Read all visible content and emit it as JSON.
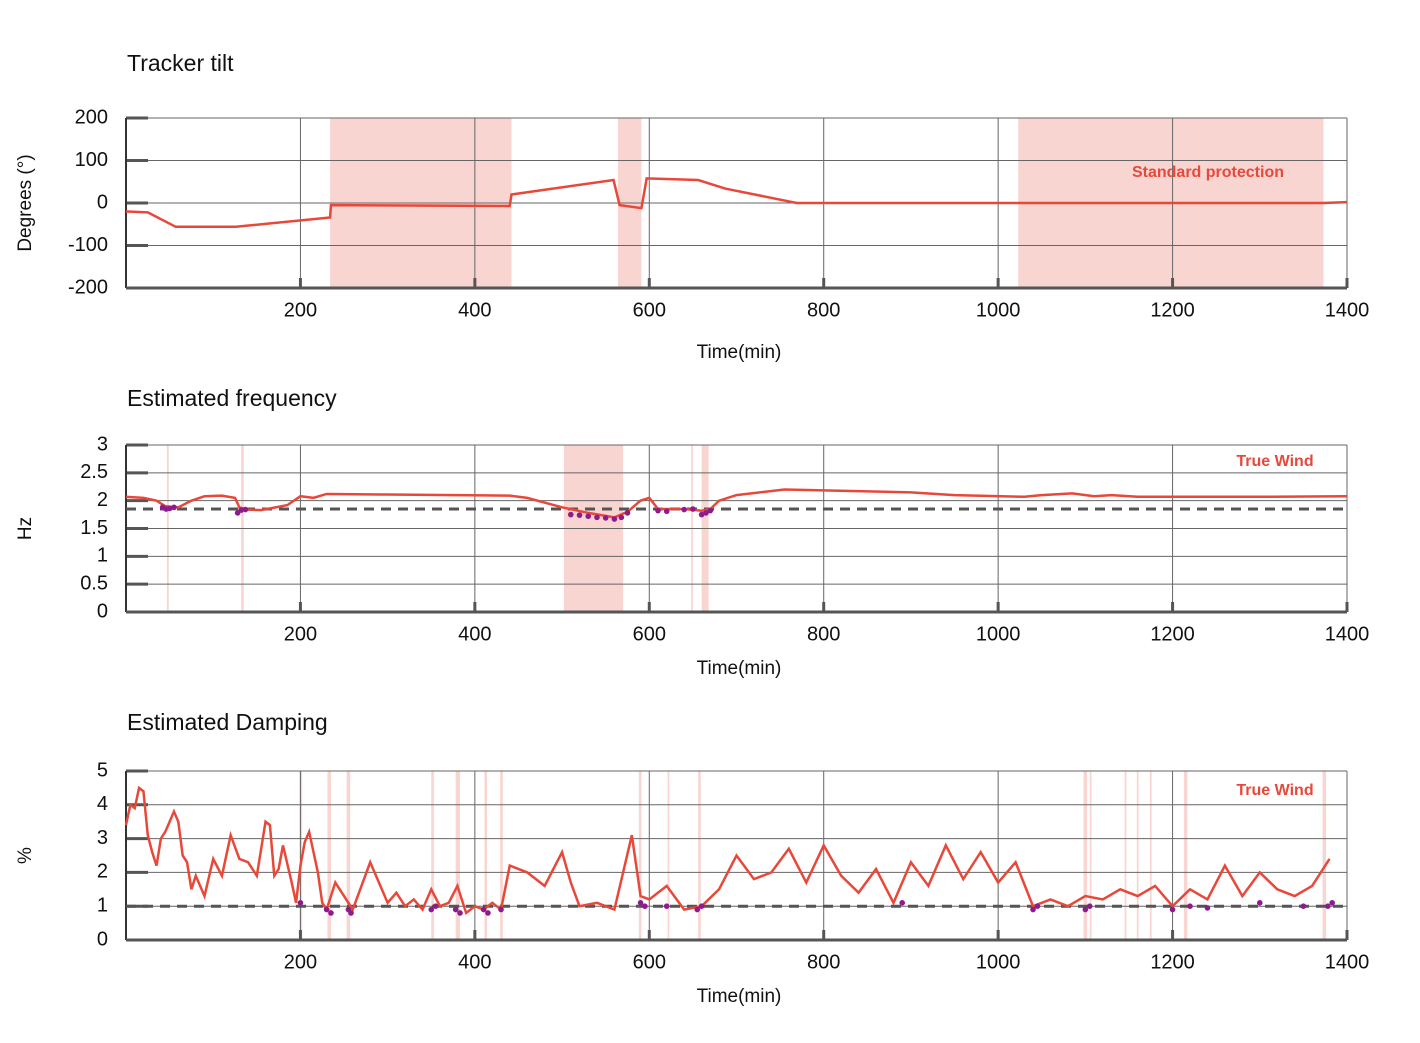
{
  "chart_data": [
    {
      "type": "line",
      "title": "Tracker tilt",
      "xlabel": "Time(min)",
      "ylabel": "Degrees (°)",
      "annotation": "Standard protection",
      "xlim": [
        0,
        1400
      ],
      "xticks": [
        200,
        400,
        600,
        800,
        1000,
        1200,
        1400
      ],
      "ylim": [
        -200,
        200
      ],
      "yticks": [
        -200,
        -100,
        0,
        100,
        200
      ],
      "grid": true,
      "band_color": "#f9d5d1",
      "bands": [
        [
          234,
          442
        ],
        [
          564,
          591
        ],
        [
          1023,
          1373
        ]
      ],
      "series": [
        {
          "color": "#e8483a",
          "x": [
            0,
            25,
            57,
            126,
            234,
            235,
            440,
            442,
            559,
            566,
            591,
            597,
            656,
            687,
            769,
            1373,
            1400
          ],
          "values": [
            -20,
            -22,
            -56,
            -56,
            -34,
            -5,
            -7,
            20,
            54,
            -5,
            -12,
            58,
            54,
            34,
            0,
            0,
            2
          ]
        }
      ]
    },
    {
      "type": "line",
      "title": "Estimated frequency",
      "xlabel": "Time(min)",
      "ylabel": "Hz",
      "annotation": "True Wind",
      "xlim": [
        0,
        1400
      ],
      "xticks": [
        200,
        400,
        600,
        800,
        1000,
        1200,
        1400
      ],
      "ylim": [
        0,
        3
      ],
      "yticks": [
        0,
        0.5,
        1,
        1.5,
        2,
        2.5,
        3
      ],
      "grid": true,
      "threshold": 1.85,
      "band_color": "#f9d5d1",
      "bands": [
        [
          47,
          49
        ],
        [
          132,
          135
        ],
        [
          502,
          570
        ],
        [
          648,
          650
        ],
        [
          660,
          668
        ]
      ],
      "series": [
        {
          "color": "#e8483a",
          "x": [
            0,
            20,
            35,
            45,
            60,
            75,
            90,
            110,
            125,
            130,
            140,
            155,
            185,
            200,
            215,
            230,
            300,
            440,
            460,
            500,
            530,
            560,
            575,
            590,
            600,
            610,
            640,
            660,
            670,
            680,
            700,
            755,
            900,
            950,
            1030,
            1050,
            1085,
            1110,
            1130,
            1160,
            1300,
            1400
          ],
          "values": [
            2.07,
            2.05,
            2.0,
            1.9,
            1.88,
            2.0,
            2.08,
            2.09,
            2.05,
            1.88,
            1.84,
            1.83,
            1.92,
            2.08,
            2.05,
            2.12,
            2.11,
            2.09,
            2.05,
            1.88,
            1.78,
            1.7,
            1.8,
            2.0,
            2.05,
            1.85,
            1.85,
            1.82,
            1.85,
            2.0,
            2.1,
            2.2,
            2.15,
            2.1,
            2.07,
            2.1,
            2.13,
            2.08,
            2.1,
            2.07,
            2.07,
            2.08
          ]
        }
      ],
      "points": {
        "color": "#8e1b8e",
        "x": [
          42,
          46,
          50,
          55,
          128,
          132,
          137,
          510,
          520,
          530,
          540,
          550,
          560,
          568,
          575,
          610,
          620,
          640,
          650,
          660,
          665,
          670
        ],
        "values": [
          1.88,
          1.85,
          1.86,
          1.88,
          1.78,
          1.83,
          1.84,
          1.75,
          1.74,
          1.72,
          1.7,
          1.69,
          1.67,
          1.7,
          1.78,
          1.82,
          1.81,
          1.84,
          1.85,
          1.75,
          1.78,
          1.82
        ]
      }
    },
    {
      "type": "line",
      "title": "Estimated Damping",
      "xlabel": "Time(min)",
      "ylabel": "%",
      "annotation": "True Wind",
      "xlim": [
        0,
        1400
      ],
      "xticks": [
        200,
        400,
        600,
        800,
        1000,
        1200,
        1400
      ],
      "ylim": [
        0,
        5
      ],
      "yticks": [
        0,
        1,
        2,
        3,
        4,
        5
      ],
      "grid": true,
      "threshold": 1,
      "band_color": "#f9d5d1",
      "bands": [
        [
          199,
          202
        ],
        [
          231,
          235
        ],
        [
          253,
          257
        ],
        [
          350,
          353
        ],
        [
          378,
          383
        ],
        [
          411,
          414
        ],
        [
          429,
          432
        ],
        [
          588,
          591
        ],
        [
          621,
          623
        ],
        [
          656,
          659
        ],
        [
          1098,
          1102
        ],
        [
          1105,
          1107
        ],
        [
          1145,
          1147
        ],
        [
          1159,
          1161
        ],
        [
          1174,
          1176
        ],
        [
          1213,
          1217
        ],
        [
          1372,
          1376
        ]
      ],
      "series": [
        {
          "color": "#e8483a",
          "x": [
            0,
            5,
            10,
            15,
            20,
            25,
            30,
            35,
            40,
            45,
            50,
            55,
            60,
            65,
            70,
            75,
            80,
            90,
            100,
            110,
            120,
            130,
            140,
            150,
            160,
            165,
            170,
            175,
            180,
            190,
            195,
            200,
            205,
            210,
            215,
            220,
            225,
            230,
            240,
            250,
            260,
            270,
            280,
            290,
            300,
            310,
            320,
            330,
            340,
            350,
            360,
            370,
            380,
            390,
            400,
            410,
            420,
            430,
            440,
            460,
            480,
            500,
            510,
            520,
            540,
            560,
            580,
            590,
            600,
            620,
            640,
            660,
            680,
            700,
            720,
            740,
            760,
            780,
            800,
            820,
            840,
            860,
            880,
            900,
            920,
            940,
            960,
            980,
            1000,
            1020,
            1040,
            1060,
            1080,
            1100,
            1120,
            1140,
            1160,
            1180,
            1200,
            1220,
            1240,
            1260,
            1280,
            1300,
            1320,
            1340,
            1360,
            1380
          ],
          "values": [
            3.4,
            4.0,
            3.9,
            4.5,
            4.4,
            3.1,
            2.6,
            2.2,
            3.0,
            3.2,
            3.5,
            3.8,
            3.5,
            2.5,
            2.3,
            1.5,
            1.9,
            1.3,
            2.4,
            1.9,
            3.1,
            2.4,
            2.3,
            1.9,
            3.5,
            3.4,
            1.9,
            2.1,
            2.8,
            1.7,
            1.1,
            2.2,
            2.9,
            3.2,
            2.6,
            2.0,
            1.1,
            0.9,
            1.7,
            1.3,
            0.9,
            1.6,
            2.3,
            1.7,
            1.1,
            1.4,
            1.0,
            1.2,
            0.9,
            1.5,
            1.0,
            1.1,
            1.6,
            0.8,
            1.0,
            0.9,
            1.1,
            0.9,
            2.2,
            2.0,
            1.6,
            2.6,
            1.7,
            1.0,
            1.1,
            0.9,
            3.1,
            1.3,
            1.2,
            1.6,
            0.9,
            1.0,
            1.5,
            2.5,
            1.8,
            2.0,
            2.7,
            1.7,
            2.8,
            1.9,
            1.4,
            2.1,
            1.1,
            2.3,
            1.6,
            2.8,
            1.8,
            2.6,
            1.7,
            2.3,
            1.0,
            1.2,
            1.0,
            1.3,
            1.2,
            1.5,
            1.3,
            1.6,
            1.0,
            1.5,
            1.2,
            2.2,
            1.3,
            2.0,
            1.5,
            1.3,
            1.6,
            2.4
          ]
        }
      ],
      "points": {
        "color": "#8e1b8e",
        "x": [
          200,
          230,
          235,
          255,
          258,
          350,
          355,
          378,
          383,
          410,
          415,
          430,
          590,
          595,
          620,
          655,
          660,
          890,
          1040,
          1045,
          1100,
          1105,
          1200,
          1220,
          1240,
          1300,
          1350,
          1378,
          1383
        ],
        "values": [
          1.1,
          0.9,
          0.8,
          0.9,
          0.8,
          0.9,
          1.0,
          0.9,
          0.8,
          0.9,
          0.8,
          0.9,
          1.1,
          1.0,
          1.0,
          0.9,
          1.0,
          1.1,
          0.9,
          1.0,
          0.9,
          1.0,
          0.9,
          1.0,
          0.95,
          1.1,
          1.0,
          1.0,
          1.1
        ]
      }
    }
  ]
}
